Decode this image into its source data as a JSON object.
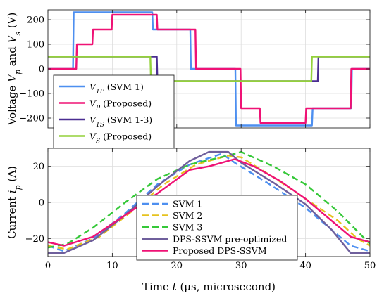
{
  "chart_data": [
    {
      "type": "line",
      "ylabel": "Voltage V_p and V_s (V)",
      "ylabel_parts": [
        "Voltage ",
        "V",
        "p",
        " and ",
        "V",
        "s",
        " (V)"
      ],
      "xlim": [
        0,
        50
      ],
      "ylim": [
        -240,
        240
      ],
      "yticks": [
        -200,
        -100,
        0,
        100,
        200
      ],
      "xticks": [
        0,
        10,
        20,
        30,
        40,
        50
      ],
      "grid": true,
      "legend_position": "lower-left",
      "series": [
        {
          "name": "V_1P (SVM 1)",
          "legend": {
            "sym": "V",
            "sub": "1P",
            "rest": " (SVM 1)"
          },
          "color": "#4d8ff0",
          "x": [
            0,
            3.9,
            4.0,
            16.2,
            16.3,
            22.1,
            22.2,
            29.1,
            29.2,
            41.0,
            41.1,
            47.1,
            47.2,
            50
          ],
          "y": [
            0,
            0,
            230,
            230,
            160,
            160,
            0,
            0,
            -230,
            -230,
            -160,
            -160,
            0,
            0
          ]
        },
        {
          "name": "V_P (Proposed)",
          "legend": {
            "sym": "V",
            "sub": "P",
            "rest": " (Proposed)"
          },
          "color": "#ef1275",
          "x": [
            0,
            4.4,
            4.5,
            6.9,
            7.0,
            9.9,
            10.0,
            16.9,
            17.0,
            22.9,
            23.0,
            29.9,
            30.0,
            32.9,
            33.0,
            40.0,
            40.1,
            47.0,
            47.1,
            50
          ],
          "y": [
            0,
            0,
            100,
            100,
            160,
            160,
            220,
            220,
            160,
            160,
            0,
            0,
            -160,
            -160,
            -220,
            -220,
            -160,
            -160,
            0,
            0
          ]
        },
        {
          "name": "V_1S (SVM 1-3)",
          "legend": {
            "sym": "V",
            "sub": "1S",
            "rest": " (SVM 1-3)"
          },
          "color": "#4a2d91",
          "x": [
            0,
            16.9,
            17.0,
            41.9,
            42.0,
            50
          ],
          "y": [
            50,
            50,
            -50,
            -50,
            50,
            50
          ]
        },
        {
          "name": "V_S (Proposed)",
          "legend": {
            "sym": "V",
            "sub": "S",
            "rest": " (Proposed)"
          },
          "color": "#93d13a",
          "x": [
            0,
            15.9,
            16.0,
            40.9,
            41.0,
            50
          ],
          "y": [
            50,
            50,
            -50,
            -50,
            50,
            50
          ]
        }
      ]
    },
    {
      "type": "line",
      "xlabel": "Time t (μs, microsecond)",
      "xlabel_parts": [
        "Time ",
        "t",
        " (μs, microsecond)"
      ],
      "ylabel": "Current i_p (A)",
      "ylabel_parts": [
        "Current ",
        "i",
        "p",
        " (A)"
      ],
      "xlim": [
        0,
        50
      ],
      "ylim": [
        -30,
        30
      ],
      "yticks": [
        -20,
        0,
        20
      ],
      "xticks": [
        0,
        10,
        20,
        30,
        40,
        50
      ],
      "grid": true,
      "legend_position": "lower-center",
      "series": [
        {
          "name": "SVM 1",
          "color": "#4d8ff0",
          "dash": true,
          "x": [
            0,
            2.5,
            7,
            12,
            17,
            22,
            27,
            29,
            34,
            40,
            44,
            47,
            50
          ],
          "y": [
            -24,
            -27,
            -20,
            -6,
            10,
            21,
            27,
            22,
            11,
            -3,
            -15,
            -24,
            -27
          ]
        },
        {
          "name": "SVM 2",
          "color": "#e6c21e",
          "dash": true,
          "x": [
            0,
            3,
            8,
            13,
            18,
            23,
            28,
            30,
            35,
            40,
            45,
            48,
            50
          ],
          "y": [
            -24,
            -26,
            -19,
            -5,
            10,
            21,
            26,
            25,
            14,
            2,
            -10,
            -20,
            -24
          ]
        },
        {
          "name": "SVM 3",
          "color": "#35c838",
          "dash": true,
          "x": [
            0,
            3,
            7,
            12,
            17,
            22,
            28,
            30,
            35,
            40,
            45,
            50
          ],
          "y": [
            -25,
            -23,
            -14,
            0,
            13,
            21,
            26,
            28,
            20,
            10,
            -5,
            -23
          ]
        },
        {
          "name": "DPS-SSVM pre-optimized",
          "color": "#6f5f9c",
          "dash": false,
          "x": [
            0,
            2.5,
            7,
            12,
            17,
            22,
            25,
            28,
            30,
            35,
            40,
            44,
            47,
            50
          ],
          "y": [
            -28,
            -28,
            -21,
            -7,
            9,
            23,
            28,
            28,
            22,
            11,
            -1,
            -15,
            -28,
            -28
          ]
        },
        {
          "name": "Proposed DPS-SSVM",
          "color": "#ef1275",
          "dash": false,
          "x": [
            0,
            2.5,
            7,
            12,
            17,
            22,
            25,
            29,
            32,
            36,
            40,
            44,
            47,
            50
          ],
          "y": [
            -22,
            -24,
            -19,
            -7,
            5,
            18,
            20,
            24,
            20,
            12,
            2,
            -10,
            -19,
            -22
          ]
        }
      ]
    }
  ]
}
